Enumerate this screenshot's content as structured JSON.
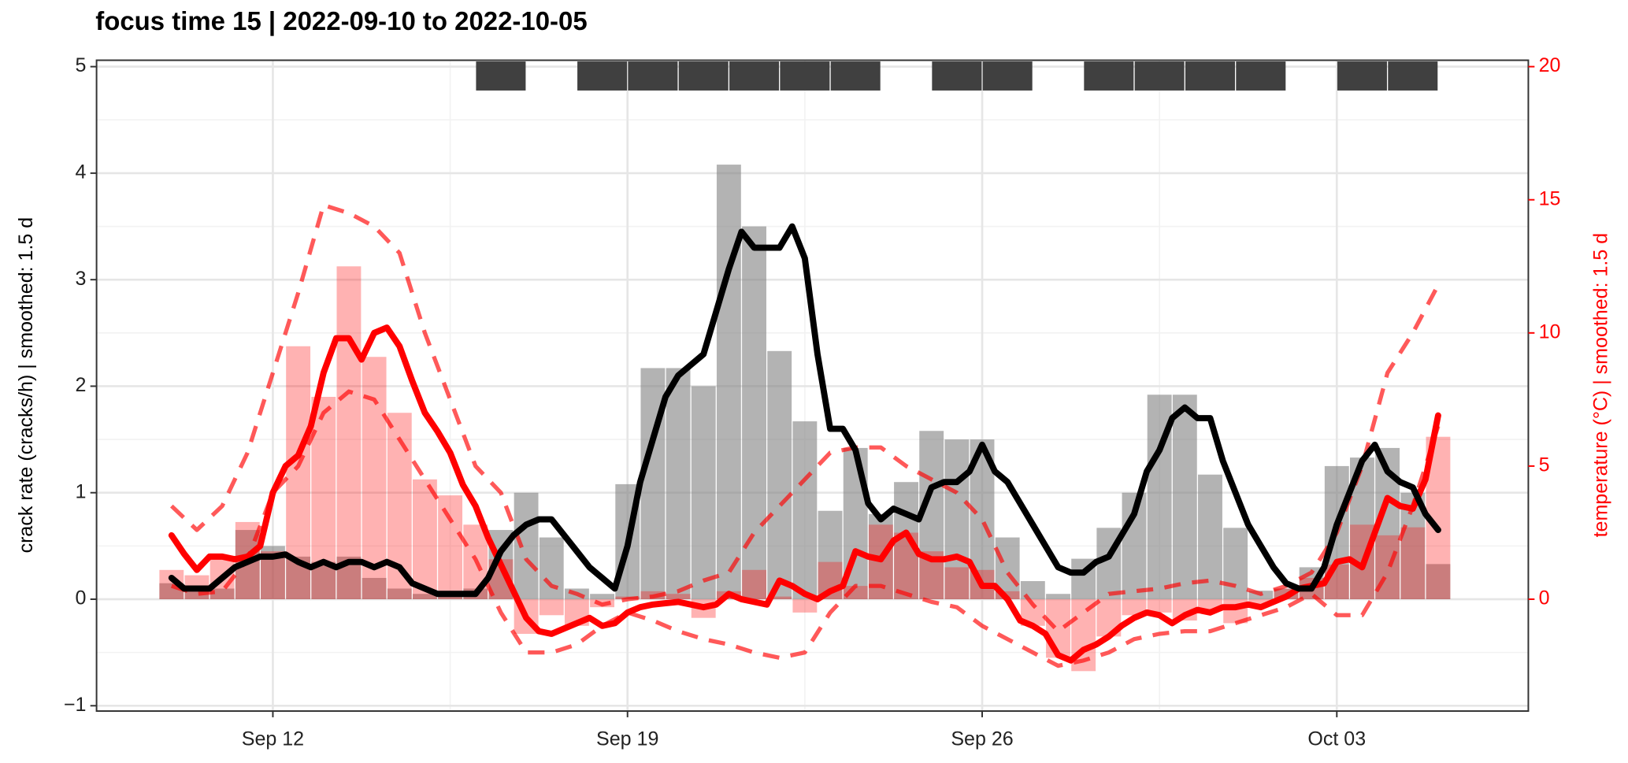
{
  "chart_data": {
    "type": "combo",
    "title": "focus time 15 | 2022-09-10 to 2022-10-05",
    "y_label": "crack rate (cracks/h) | smoothed: 1.5 d",
    "y2_label": "temperature (°C) | smoothed: 1.5 d",
    "xlim": [
      8.52,
      36.78
    ],
    "xticks": [
      {
        "value": 12,
        "label": "Sep 12"
      },
      {
        "value": 19,
        "label": "Sep 19"
      },
      {
        "value": 26,
        "label": "Sep 26"
      },
      {
        "value": 33,
        "label": "Oct 03"
      }
    ],
    "ylim": [
      -1.05,
      5.06
    ],
    "yticks": [
      {
        "value": -1,
        "label": "−1"
      },
      0,
      1,
      2,
      3,
      4,
      5
    ],
    "y2lim": [
      -4.2,
      20.24
    ],
    "y2ticks": [
      0,
      5,
      10,
      15,
      20
    ],
    "y2_color": "#ff0000",
    "grid": true,
    "minor_grid": true,
    "block_color": "#404040",
    "blocks": [
      16,
      18,
      19,
      20,
      21,
      22,
      23,
      25,
      26,
      28,
      29,
      30,
      31,
      33,
      34
    ],
    "series": [
      {
        "kind": "bar",
        "color": "#808080",
        "opacity": 0.6,
        "x": [
          10,
          10.5,
          11,
          11.5,
          12,
          12.5,
          13,
          13.5,
          14,
          14.5,
          15,
          15.5,
          16,
          16.5,
          17,
          17.5,
          18,
          18.5,
          19,
          19.5,
          20,
          20.5,
          21,
          21.5,
          22,
          22.5,
          23,
          23.5,
          24,
          24.5,
          25,
          25.5,
          26,
          26.5,
          27,
          27.5,
          28,
          28.5,
          29,
          29.5,
          30,
          30.5,
          31,
          31.5,
          32,
          32.5,
          33,
          33.5,
          34,
          34.5,
          35
        ],
        "values": [
          0.15,
          0.1,
          0.1,
          0.65,
          0.5,
          0.4,
          0.35,
          0.4,
          0.2,
          0.1,
          0.05,
          0.05,
          0.1,
          0.65,
          1.0,
          0.58,
          0.1,
          0.05,
          1.08,
          2.17,
          2.17,
          2.0,
          4.08,
          3.5,
          2.33,
          1.67,
          0.83,
          1.42,
          0.8,
          1.1,
          1.58,
          1.5,
          1.5,
          0.58,
          0.17,
          0.05,
          0.38,
          0.67,
          1.0,
          1.92,
          1.92,
          1.17,
          0.67,
          0.08,
          0.1,
          0.3,
          1.25,
          1.33,
          1.42,
          1.0,
          0.33
        ]
      },
      {
        "kind": "bar",
        "axis": "y2",
        "color": "#ff0000",
        "opacity": 0.3,
        "x": [
          10,
          10.5,
          11,
          11.5,
          12,
          12.5,
          13,
          13.5,
          14,
          14.5,
          15,
          15.5,
          16,
          16.5,
          17,
          17.5,
          18,
          18.5,
          19,
          19.5,
          20,
          20.5,
          21,
          21.5,
          22,
          22.5,
          23,
          23.5,
          24,
          24.5,
          25,
          25.5,
          26,
          26.5,
          27,
          27.5,
          28,
          28.5,
          29,
          29.5,
          30,
          30.5,
          31,
          31.5,
          32,
          32.5,
          33,
          33.5,
          34,
          34.5,
          35
        ],
        "values": [
          1.1,
          0.9,
          1.5,
          2.9,
          1.8,
          9.5,
          7.6,
          12.5,
          9.1,
          7.0,
          4.5,
          3.9,
          2.8,
          1.5,
          -1.3,
          -0.6,
          -1.0,
          -0.3,
          0.1,
          0.3,
          0.2,
          -0.7,
          0.3,
          1.1,
          0.1,
          -0.5,
          1.4,
          0.5,
          2.8,
          2.5,
          1.8,
          1.2,
          1.1,
          0.3,
          -1.0,
          -2.2,
          -2.7,
          -1.4,
          -0.6,
          -0.5,
          -0.8,
          -0.4,
          -0.9,
          -0.2,
          0.4,
          0.8,
          1.3,
          2.8,
          2.4,
          2.7,
          6.1
        ]
      },
      {
        "kind": "line",
        "axis": "y2",
        "dashed": true,
        "color": "#ff0000",
        "opacity": 0.65,
        "x": [
          10,
          10.5,
          11,
          11.5,
          12,
          12.5,
          13,
          13.5,
          14,
          14.5,
          15,
          15.5,
          16,
          16.5,
          17,
          17.5,
          18,
          18.5,
          19,
          19.5,
          20,
          20.5,
          21,
          21.5,
          22,
          22.5,
          23,
          23.5,
          24,
          24.5,
          25,
          25.5,
          26,
          26.5,
          27,
          27.5,
          28,
          28.5,
          29,
          29.5,
          30,
          30.5,
          31,
          31.5,
          32,
          32.5,
          33,
          33.5,
          34,
          34.5,
          35
        ],
        "values": [
          3.5,
          2.6,
          3.5,
          5.5,
          8.5,
          11.5,
          14.8,
          14.5,
          14.0,
          13.0,
          10.0,
          7.5,
          5.0,
          4.0,
          1.5,
          0.5,
          0.2,
          -0.2,
          0.0,
          0.1,
          0.3,
          0.7,
          1.0,
          2.5,
          3.5,
          4.5,
          5.5,
          5.7,
          5.7,
          5.0,
          4.5,
          4.0,
          3.0,
          1.0,
          -0.2,
          -1.2,
          -0.5,
          0.2,
          0.3,
          0.4,
          0.6,
          0.7,
          0.5,
          0.2,
          0.5,
          1.0,
          2.5,
          5.0,
          8.5,
          10.0,
          11.8
        ]
      },
      {
        "kind": "line",
        "axis": "y2",
        "dashed": true,
        "color": "#ff0000",
        "opacity": 0.65,
        "x": [
          10,
          10.5,
          11,
          11.5,
          12,
          12.5,
          13,
          13.5,
          14,
          14.5,
          15,
          15.5,
          16,
          16.5,
          17,
          17.5,
          18,
          18.5,
          19,
          19.5,
          20,
          20.5,
          21,
          21.5,
          22,
          22.5,
          23,
          23.5,
          24,
          24.5,
          25,
          25.5,
          26,
          26.5,
          27,
          27.5,
          28,
          28.5,
          29,
          29.5,
          30,
          30.5,
          31,
          31.5,
          32,
          32.5,
          33,
          33.5,
          34,
          34.5,
          35
        ],
        "values": [
          0.5,
          0.2,
          0.3,
          1.5,
          4.0,
          5.0,
          7.0,
          7.8,
          7.5,
          6.0,
          4.5,
          3.0,
          1.5,
          -0.5,
          -2.0,
          -2.0,
          -1.7,
          -1.0,
          -0.5,
          -0.8,
          -1.2,
          -1.5,
          -1.7,
          -2.0,
          -2.2,
          -2.0,
          -0.5,
          0.5,
          0.5,
          0.2,
          -0.1,
          -0.3,
          -1.0,
          -1.5,
          -2.0,
          -2.5,
          -2.3,
          -2.0,
          -1.5,
          -1.3,
          -1.2,
          -1.2,
          -0.9,
          -0.6,
          -0.3,
          0.2,
          -0.6,
          -0.6,
          1.0,
          3.5,
          6.5
        ]
      },
      {
        "kind": "line",
        "axis": "y2",
        "color": "#ff0000",
        "opacity": 1,
        "x": [
          10,
          10.25,
          10.5,
          10.75,
          11,
          11.25,
          11.5,
          11.75,
          12,
          12.25,
          12.5,
          12.75,
          13,
          13.25,
          13.5,
          13.75,
          14,
          14.25,
          14.5,
          14.75,
          15,
          15.25,
          15.5,
          15.75,
          16,
          16.25,
          16.5,
          16.75,
          17,
          17.25,
          17.5,
          17.75,
          18,
          18.25,
          18.5,
          18.75,
          19,
          19.25,
          19.5,
          19.75,
          20,
          20.25,
          20.5,
          20.75,
          21,
          21.25,
          21.5,
          21.75,
          22,
          22.25,
          22.5,
          22.75,
          23,
          23.25,
          23.5,
          23.75,
          24,
          24.25,
          24.5,
          24.75,
          25,
          25.25,
          25.5,
          25.75,
          26,
          26.25,
          26.5,
          26.75,
          27,
          27.25,
          27.5,
          27.75,
          28,
          28.25,
          28.5,
          28.75,
          29,
          29.25,
          29.5,
          29.75,
          30,
          30.25,
          30.5,
          30.75,
          31,
          31.25,
          31.5,
          31.75,
          32,
          32.25,
          32.5,
          32.75,
          33,
          33.25,
          33.5,
          33.75,
          34,
          34.25,
          34.5,
          34.75,
          35
        ],
        "values": [
          2.4,
          1.7,
          1.1,
          1.6,
          1.6,
          1.5,
          1.6,
          2.0,
          4.0,
          5.0,
          5.4,
          6.5,
          8.5,
          9.8,
          9.8,
          9.0,
          10.0,
          10.2,
          9.5,
          8.2,
          7.0,
          6.3,
          5.5,
          4.3,
          3.5,
          2.3,
          1.3,
          0.3,
          -0.7,
          -1.2,
          -1.3,
          -1.1,
          -0.9,
          -0.7,
          -1.0,
          -0.9,
          -0.5,
          -0.3,
          -0.2,
          -0.15,
          -0.1,
          -0.2,
          -0.3,
          -0.2,
          0.2,
          0,
          -0.1,
          -0.2,
          0.7,
          0.5,
          0.2,
          0,
          0.3,
          0.5,
          1.8,
          1.6,
          1.5,
          2.2,
          2.5,
          1.7,
          1.5,
          1.5,
          1.6,
          1.4,
          0.5,
          0.5,
          0,
          -0.8,
          -1.0,
          -1.3,
          -2.1,
          -2.3,
          -1.9,
          -1.7,
          -1.4,
          -1.0,
          -0.7,
          -0.5,
          -0.6,
          -0.9,
          -0.6,
          -0.4,
          -0.5,
          -0.3,
          -0.3,
          -0.2,
          -0.3,
          -0.1,
          0.1,
          0.4,
          0.5,
          0.6,
          1.4,
          1.5,
          1.2,
          2.5,
          3.8,
          3.5,
          3.4,
          4.5,
          6.9
        ]
      },
      {
        "kind": "line",
        "color": "#000000",
        "opacity": 1,
        "x": [
          10,
          10.25,
          10.5,
          10.75,
          11,
          11.25,
          11.5,
          11.75,
          12,
          12.25,
          12.5,
          12.75,
          13,
          13.25,
          13.5,
          13.75,
          14,
          14.25,
          14.5,
          14.75,
          15,
          15.25,
          15.5,
          15.75,
          16,
          16.25,
          16.5,
          16.75,
          17,
          17.25,
          17.5,
          17.75,
          18,
          18.25,
          18.5,
          18.75,
          19,
          19.25,
          19.5,
          19.75,
          20,
          20.25,
          20.5,
          20.75,
          21,
          21.25,
          21.5,
          21.75,
          22,
          22.25,
          22.5,
          22.75,
          23,
          23.25,
          23.5,
          23.75,
          24,
          24.25,
          24.5,
          24.75,
          25,
          25.25,
          25.5,
          25.75,
          26,
          26.25,
          26.5,
          26.75,
          27,
          27.25,
          27.5,
          27.75,
          28,
          28.25,
          28.5,
          28.75,
          29,
          29.25,
          29.5,
          29.75,
          30,
          30.25,
          30.5,
          30.75,
          31,
          31.25,
          31.5,
          31.75,
          32,
          32.25,
          32.5,
          32.75,
          33,
          33.25,
          33.5,
          33.75,
          34,
          34.25,
          34.5,
          34.75,
          35
        ],
        "values": [
          0.2,
          0.1,
          0.1,
          0.1,
          0.2,
          0.3,
          0.35,
          0.4,
          0.4,
          0.42,
          0.35,
          0.3,
          0.35,
          0.3,
          0.35,
          0.35,
          0.3,
          0.35,
          0.3,
          0.15,
          0.1,
          0.05,
          0.05,
          0.05,
          0.05,
          0.2,
          0.45,
          0.6,
          0.7,
          0.75,
          0.75,
          0.6,
          0.45,
          0.3,
          0.2,
          0.1,
          0.5,
          1.1,
          1.5,
          1.9,
          2.1,
          2.2,
          2.3,
          2.7,
          3.1,
          3.45,
          3.3,
          3.3,
          3.3,
          3.5,
          3.2,
          2.3,
          1.6,
          1.6,
          1.4,
          0.9,
          0.75,
          0.85,
          0.8,
          0.75,
          1.05,
          1.1,
          1.1,
          1.2,
          1.45,
          1.2,
          1.1,
          0.9,
          0.7,
          0.5,
          0.3,
          0.25,
          0.25,
          0.35,
          0.4,
          0.6,
          0.8,
          1.2,
          1.4,
          1.7,
          1.8,
          1.7,
          1.7,
          1.3,
          1.0,
          0.7,
          0.5,
          0.3,
          0.15,
          0.1,
          0.1,
          0.3,
          0.7,
          1.0,
          1.3,
          1.45,
          1.2,
          1.1,
          1.05,
          0.8,
          0.65
        ]
      }
    ]
  }
}
